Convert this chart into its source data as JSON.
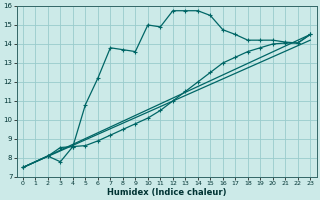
{
  "xlabel": "Humidex (Indice chaleur)",
  "background_color": "#cceae8",
  "grid_color": "#99cccc",
  "line_color": "#006666",
  "xlim": [
    -0.5,
    23.5
  ],
  "ylim": [
    7,
    16
  ],
  "xticks": [
    0,
    1,
    2,
    3,
    4,
    5,
    6,
    7,
    8,
    9,
    10,
    11,
    12,
    13,
    14,
    15,
    16,
    17,
    18,
    19,
    20,
    21,
    22,
    23
  ],
  "yticks": [
    7,
    8,
    9,
    10,
    11,
    12,
    13,
    14,
    15,
    16
  ],
  "line1_x": [
    0,
    2,
    3,
    4,
    5,
    6,
    7,
    8,
    9,
    10,
    11,
    12,
    13,
    14,
    15,
    16,
    17,
    18,
    19,
    20,
    21,
    22,
    23
  ],
  "line1_y": [
    7.5,
    8.1,
    7.8,
    8.6,
    10.8,
    12.2,
    13.8,
    13.7,
    13.6,
    15.0,
    14.9,
    15.75,
    15.75,
    15.75,
    15.5,
    14.75,
    14.5,
    14.2,
    14.2,
    14.2,
    14.1,
    14.05,
    14.5
  ],
  "line2_x": [
    0,
    2,
    3,
    4,
    5,
    6,
    7,
    8,
    9,
    10,
    11,
    12,
    13,
    14,
    15,
    16,
    17,
    18,
    19,
    20,
    21,
    22,
    23
  ],
  "line2_y": [
    7.5,
    8.1,
    8.55,
    8.6,
    8.65,
    8.9,
    9.2,
    9.5,
    9.8,
    10.1,
    10.5,
    11.0,
    11.5,
    12.0,
    12.5,
    13.0,
    13.3,
    13.6,
    13.8,
    14.0,
    14.05,
    14.05,
    14.5
  ],
  "line3_x": [
    0,
    23
  ],
  "line3_y": [
    7.5,
    14.5
  ],
  "line4_x": [
    0,
    23
  ],
  "line4_y": [
    7.5,
    14.2
  ]
}
